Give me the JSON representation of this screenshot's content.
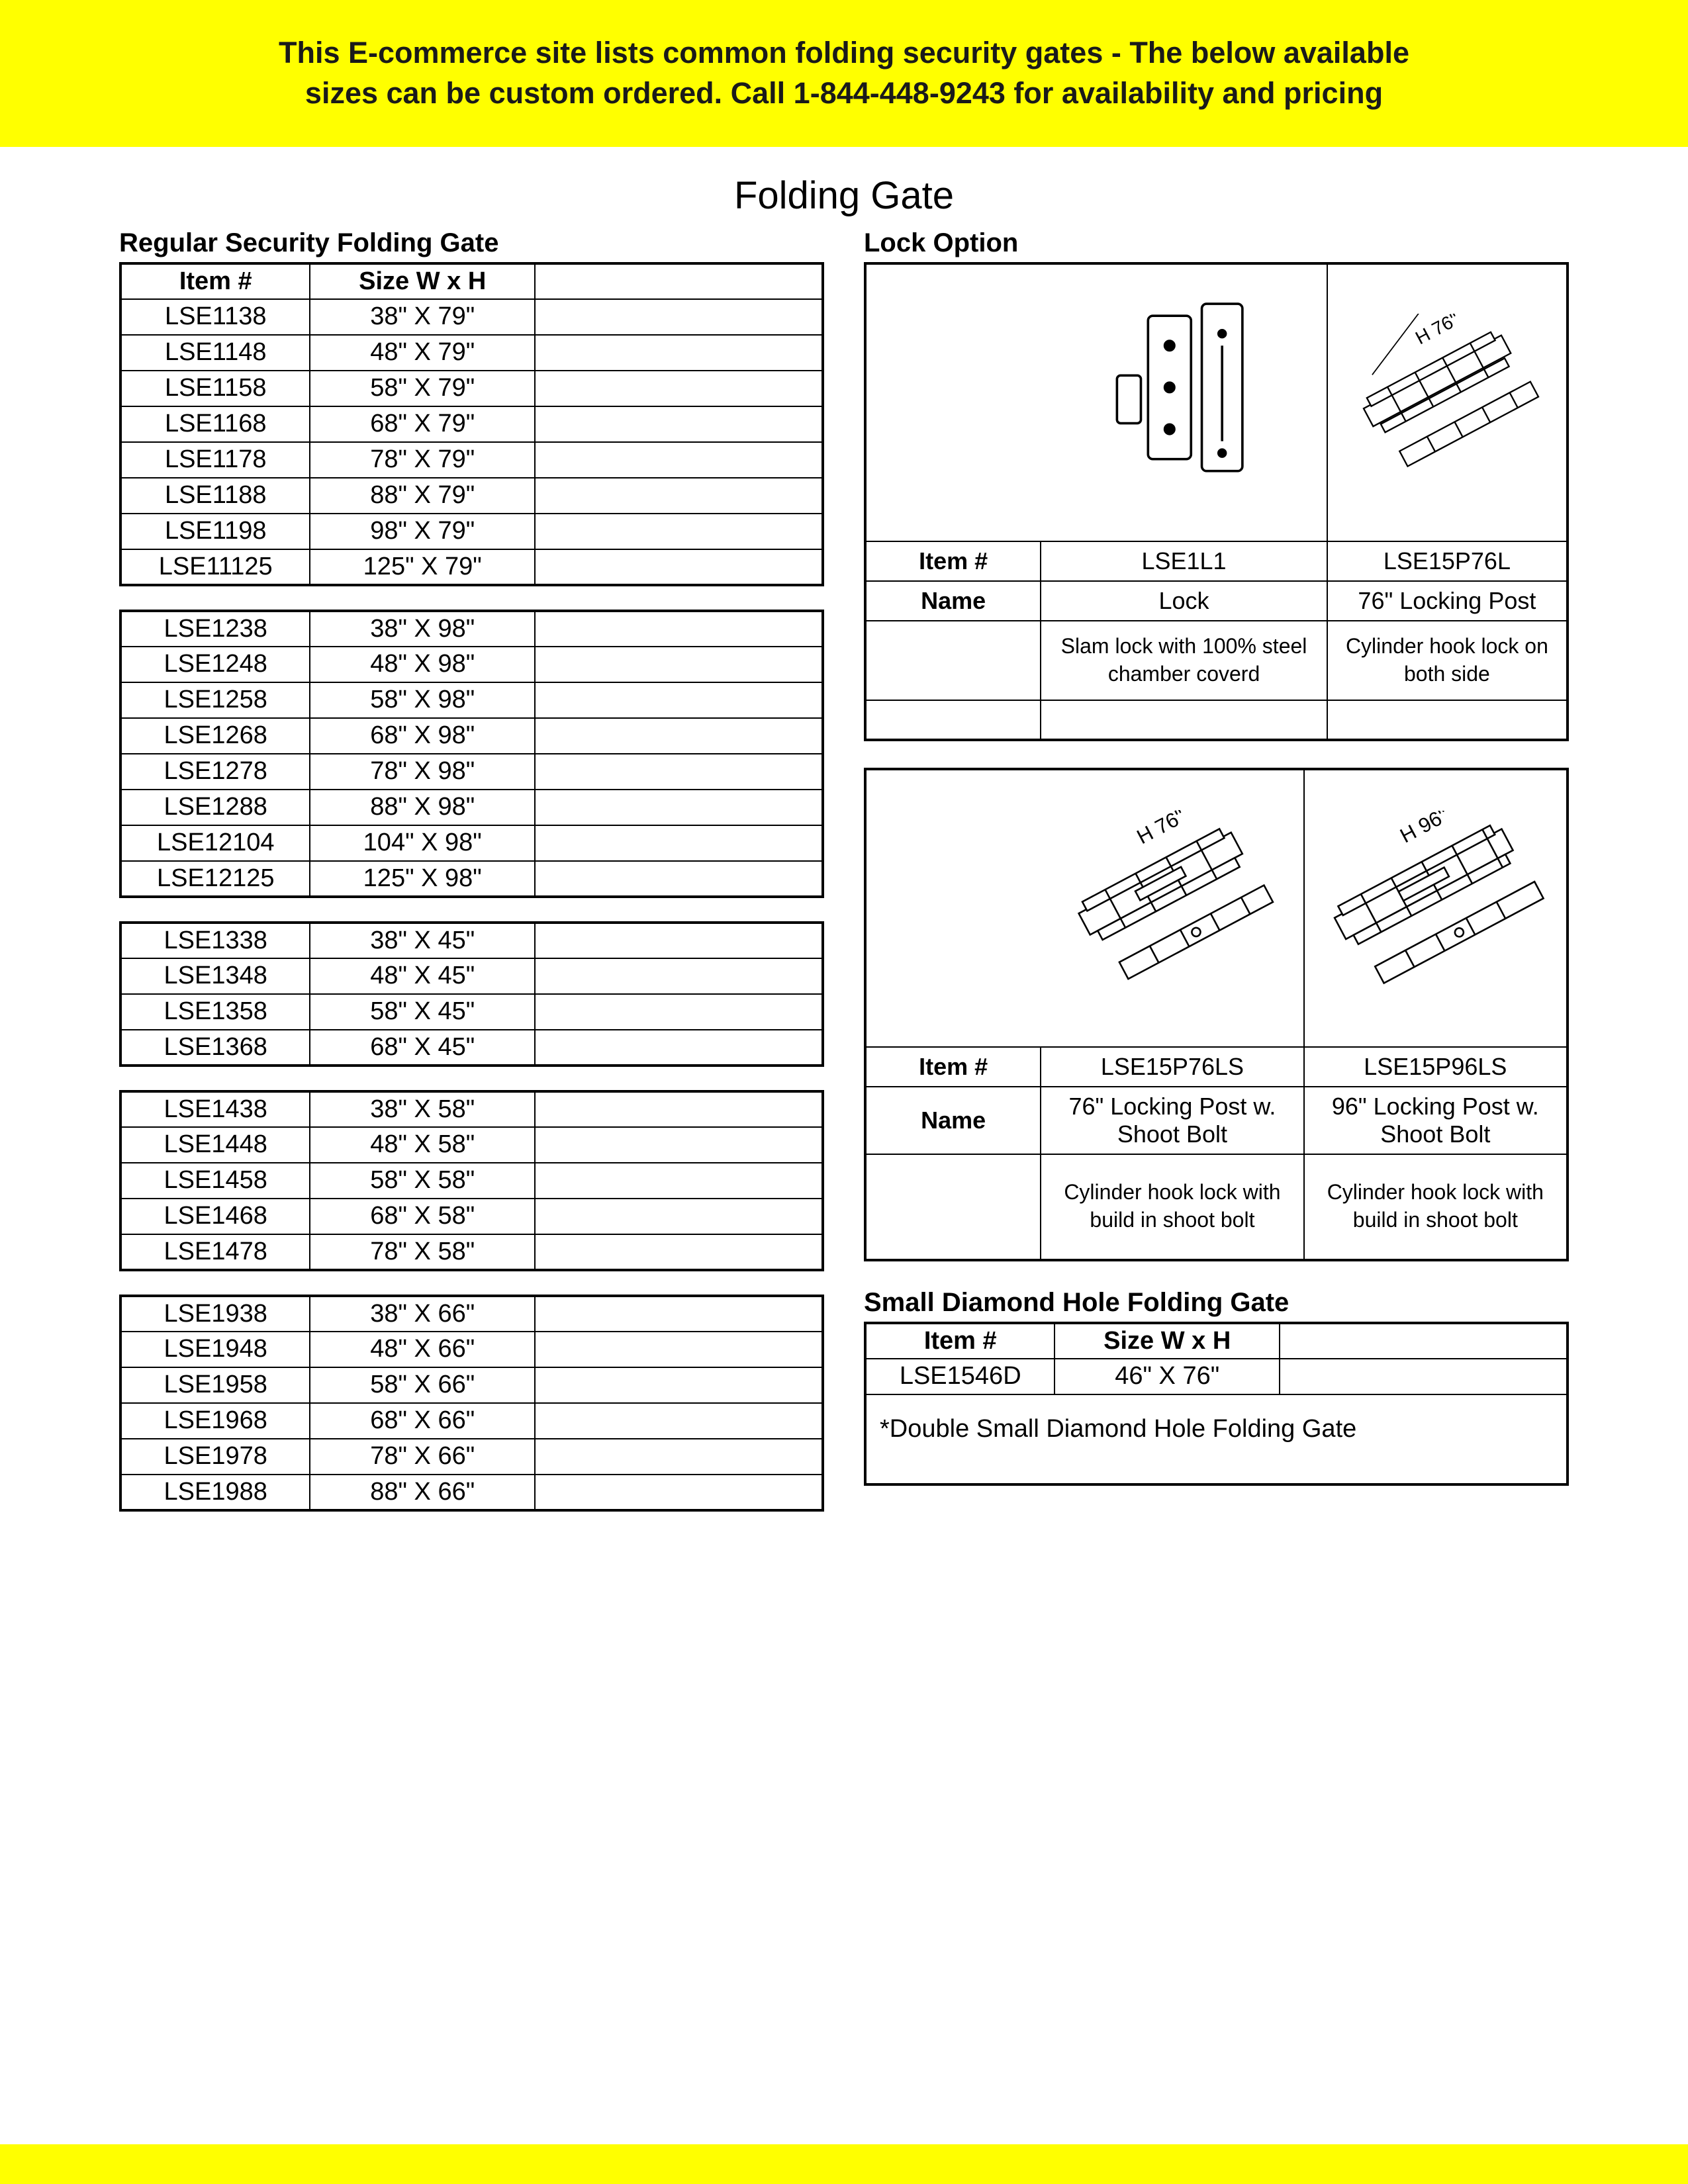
{
  "banner": {
    "line1": "This E-commerce site lists common folding security gates - The below available",
    "line2": "sizes can be custom ordered. Call 1-844-448-9243 for availability and pricing"
  },
  "page_title": "Folding Gate",
  "left": {
    "title": "Regular Security Folding Gate",
    "header": {
      "item": "Item #",
      "size": "Size  W x H"
    },
    "groups": [
      [
        {
          "item": "LSE1138",
          "size": "38\" X 79\""
        },
        {
          "item": "LSE1148",
          "size": "48\" X 79\""
        },
        {
          "item": "LSE1158",
          "size": "58\" X 79\""
        },
        {
          "item": "LSE1168",
          "size": "68\" X 79\""
        },
        {
          "item": "LSE1178",
          "size": "78\" X 79\""
        },
        {
          "item": "LSE1188",
          "size": "88\" X 79\""
        },
        {
          "item": "LSE1198",
          "size": "98\" X 79\""
        },
        {
          "item": "LSE11125",
          "size": "125\" X 79\""
        }
      ],
      [
        {
          "item": "LSE1238",
          "size": "38\" X 98\""
        },
        {
          "item": "LSE1248",
          "size": "48\" X 98\""
        },
        {
          "item": "LSE1258",
          "size": "58\" X 98\""
        },
        {
          "item": "LSE1268",
          "size": "68\" X 98\""
        },
        {
          "item": "LSE1278",
          "size": "78\" X 98\""
        },
        {
          "item": "LSE1288",
          "size": "88\" X 98\""
        },
        {
          "item": "LSE12104",
          "size": "104\" X 98\""
        },
        {
          "item": "LSE12125",
          "size": "125\" X 98\""
        }
      ],
      [
        {
          "item": "LSE1338",
          "size": "38\" X 45\""
        },
        {
          "item": "LSE1348",
          "size": "48\" X 45\""
        },
        {
          "item": "LSE1358",
          "size": "58\" X 45\""
        },
        {
          "item": "LSE1368",
          "size": "68\" X 45\""
        }
      ],
      [
        {
          "item": "LSE1438",
          "size": "38\" X 58\""
        },
        {
          "item": "LSE1448",
          "size": "48\" X 58\""
        },
        {
          "item": "LSE1458",
          "size": "58\" X 58\""
        },
        {
          "item": "LSE1468",
          "size": "68\" X 58\""
        },
        {
          "item": "LSE1478",
          "size": "78\" X 58\""
        }
      ],
      [
        {
          "item": "LSE1938",
          "size": "38\" X 66\""
        },
        {
          "item": "LSE1948",
          "size": "48\" X 66\""
        },
        {
          "item": "LSE1958",
          "size": "58\" X 66\""
        },
        {
          "item": "LSE1968",
          "size": "68\" X 66\""
        },
        {
          "item": "LSE1978",
          "size": "78\" X 66\""
        },
        {
          "item": "LSE1988",
          "size": "88\" X 66\""
        }
      ]
    ]
  },
  "lock": {
    "title": "Lock Option",
    "row_item_label": "Item #",
    "row_name_label": "Name",
    "set1": {
      "a": {
        "item": "LSE1L1",
        "name": "Lock",
        "desc": "Slam lock with 100% steel chamber coverd",
        "img_label": ""
      },
      "b": {
        "item": "LSE15P76L",
        "name": "76\" Locking Post",
        "desc": "Cylinder hook lock on both side",
        "img_label": "H 76\""
      }
    },
    "set2": {
      "a": {
        "item": "LSE15P76LS",
        "name": "76\" Locking Post w. Shoot Bolt",
        "desc": "Cylinder hook lock with build in shoot bolt",
        "img_label": "H 76\""
      },
      "b": {
        "item": "LSE15P96LS",
        "name": "96\" Locking Post w. Shoot Bolt",
        "desc": "Cylinder hook lock with build in shoot bolt",
        "img_label": "H 96\""
      }
    }
  },
  "small_diamond": {
    "title": "Small Diamond Hole Folding Gate",
    "header": {
      "item": "Item #",
      "size": "Size  W x H"
    },
    "rows": [
      {
        "item": "LSE1546D",
        "size": "46\" X 76\""
      }
    ],
    "note": "*Double Small Diamond Hole Folding Gate"
  },
  "colors": {
    "banner_bg": "#ffff00",
    "text": "#000000",
    "border": "#000000",
    "page_bg": "#ffffff"
  }
}
